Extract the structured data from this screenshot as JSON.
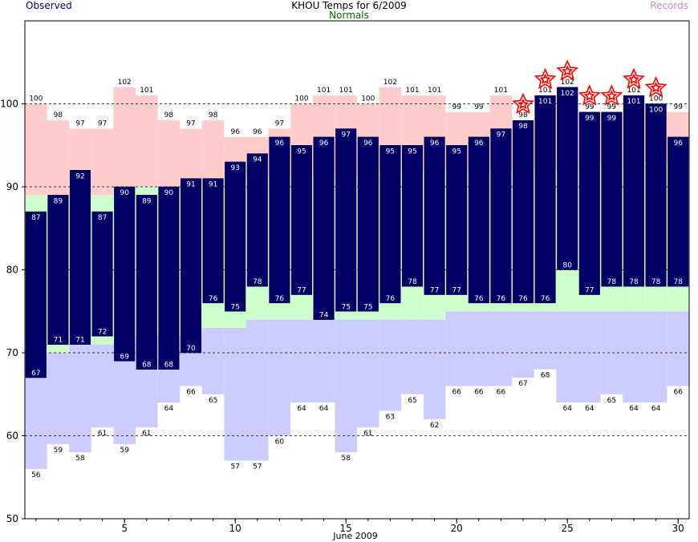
{
  "chart_data": {
    "type": "bar",
    "title": "KHOU Temps for 6/2009",
    "xlabel": "June 2009",
    "ylabel": "",
    "xlim": [
      0.5,
      30.5
    ],
    "ylim": [
      50,
      110
    ],
    "x_ticks": [
      5,
      10,
      15,
      20,
      25,
      30
    ],
    "y_ticks": [
      50,
      60,
      70,
      80,
      90,
      100
    ],
    "grid": "horizontal dashed",
    "legend": [
      {
        "name": "Observed",
        "color": "#000066",
        "placement": "top-left"
      },
      {
        "name": "Normals",
        "color": "#006600",
        "placement": "top-center"
      },
      {
        "name": "Records",
        "color": "#cc88cc",
        "placement": "top-right"
      }
    ],
    "days": [
      1,
      2,
      3,
      4,
      5,
      6,
      7,
      8,
      9,
      10,
      11,
      12,
      13,
      14,
      15,
      16,
      17,
      18,
      19,
      20,
      21,
      22,
      23,
      24,
      25,
      26,
      27,
      28,
      29,
      30
    ],
    "record_high": [
      100,
      98,
      97,
      97,
      102,
      101,
      98,
      97,
      98,
      96,
      96,
      97,
      100,
      101,
      101,
      100,
      102,
      101,
      101,
      99,
      99,
      101,
      98,
      101,
      102,
      99,
      99,
      101,
      100,
      99
    ],
    "record_low": [
      56,
      59,
      58,
      61,
      59,
      61,
      64,
      66,
      65,
      57,
      57,
      60,
      64,
      64,
      58,
      61,
      63,
      65,
      62,
      66,
      66,
      66,
      67,
      68,
      64,
      64,
      65,
      64,
      64,
      66
    ],
    "normal_high": [
      89,
      89,
      89,
      89,
      90,
      90,
      90,
      90,
      90,
      91,
      91,
      91,
      91,
      91,
      91,
      91,
      92,
      92,
      92,
      92,
      92,
      92,
      92,
      92,
      92,
      93,
      93,
      93,
      93,
      93
    ],
    "normal_low": [
      70,
      70,
      71,
      71,
      71,
      72,
      72,
      72,
      73,
      73,
      74,
      74,
      74,
      74,
      74,
      74,
      74,
      74,
      74,
      75,
      75,
      75,
      75,
      75,
      75,
      75,
      75,
      75,
      75,
      75
    ],
    "series": [
      {
        "name": "Observed High",
        "values": [
          87,
          89,
          92,
          87,
          90,
          89,
          90,
          91,
          91,
          93,
          94,
          96,
          95,
          96,
          97,
          96,
          95,
          95,
          96,
          95,
          96,
          97,
          98,
          101,
          102,
          99,
          99,
          101,
          100,
          96
        ]
      },
      {
        "name": "Observed Low",
        "values": [
          67,
          71,
          71,
          72,
          69,
          68,
          68,
          70,
          76,
          75,
          78,
          76,
          77,
          74,
          75,
          75,
          76,
          78,
          77,
          77,
          76,
          76,
          76,
          76,
          80,
          77,
          78,
          78,
          78,
          78
        ]
      }
    ],
    "record_set_days": [
      23,
      24,
      25,
      26,
      27,
      28,
      29
    ],
    "colors": {
      "observed": "#000066",
      "normal_band": "#ccffcc",
      "record_high_band": "#ffcccc",
      "record_low_band": "#ccccff",
      "star": "#ff0000",
      "grid": "#000000"
    }
  }
}
